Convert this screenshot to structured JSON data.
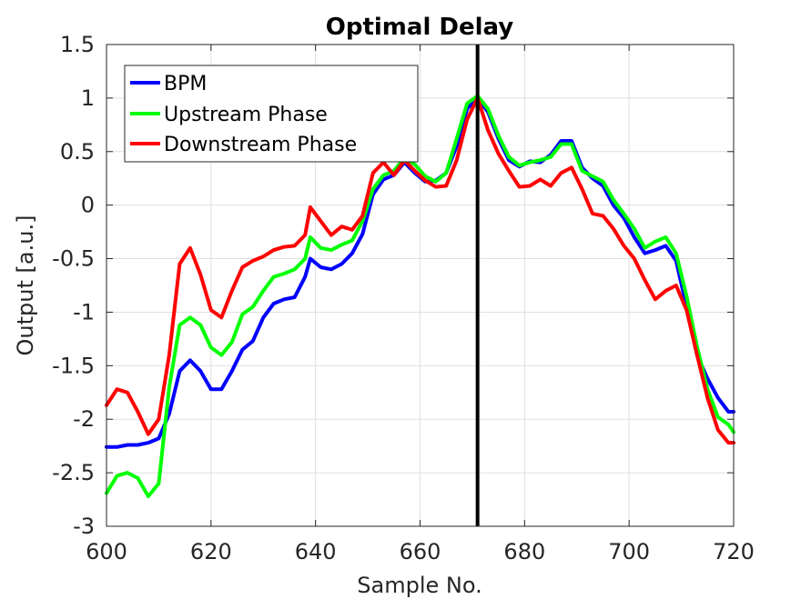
{
  "chart_data": {
    "type": "line",
    "title": "Optimal Delay",
    "xlabel": "Sample No.",
    "ylabel": "Output [a.u.]",
    "xlim": [
      600,
      720
    ],
    "ylim": [
      -3,
      1.5
    ],
    "xticks": [
      600,
      620,
      640,
      660,
      680,
      700,
      720
    ],
    "yticks": [
      -3,
      -2.5,
      -2,
      -1.5,
      -1,
      -0.5,
      0,
      0.5,
      1,
      1.5
    ],
    "xtick_labels": [
      "600",
      "620",
      "640",
      "660",
      "680",
      "700",
      "720"
    ],
    "ytick_labels": [
      "-3",
      "-2.5",
      "-2",
      "-1.5",
      "-1",
      "-0.5",
      "0",
      "0.5",
      "1",
      "1.5"
    ],
    "grid": true,
    "legend_position": "top-left",
    "vline": {
      "x": 671,
      "color": "#000000"
    },
    "series": [
      {
        "name": "BPM",
        "color": "#0000ff",
        "x": [
          600,
          602,
          604,
          606,
          608,
          610,
          612,
          614,
          616,
          618,
          620,
          622,
          624,
          626,
          628,
          630,
          632,
          634,
          636,
          638,
          639,
          641,
          643,
          645,
          647,
          649,
          651,
          653,
          655,
          657,
          659,
          661,
          663,
          665,
          667,
          669,
          671,
          673,
          675,
          677,
          679,
          681,
          683,
          685,
          687,
          689,
          691,
          693,
          695,
          697,
          699,
          701,
          703,
          705,
          707,
          709,
          711,
          713,
          715,
          717,
          719,
          720
        ],
        "y": [
          -2.26,
          -2.26,
          -2.24,
          -2.24,
          -2.22,
          -2.18,
          -1.95,
          -1.55,
          -1.45,
          -1.55,
          -1.72,
          -1.72,
          -1.55,
          -1.35,
          -1.27,
          -1.05,
          -0.92,
          -0.88,
          -0.86,
          -0.67,
          -0.5,
          -0.58,
          -0.6,
          -0.55,
          -0.45,
          -0.27,
          0.1,
          0.24,
          0.28,
          0.4,
          0.3,
          0.22,
          0.23,
          0.3,
          0.55,
          0.9,
          1.0,
          0.87,
          0.62,
          0.42,
          0.36,
          0.41,
          0.4,
          0.47,
          0.6,
          0.6,
          0.35,
          0.25,
          0.18,
          0.0,
          -0.12,
          -0.3,
          -0.45,
          -0.42,
          -0.38,
          -0.52,
          -0.95,
          -1.4,
          -1.62,
          -1.8,
          -1.93,
          -1.93
        ]
      },
      {
        "name": "Upstream Phase",
        "color": "#00ff00",
        "x": [
          600,
          602,
          604,
          606,
          608,
          610,
          612,
          614,
          616,
          618,
          620,
          622,
          624,
          626,
          628,
          630,
          632,
          634,
          636,
          638,
          639,
          641,
          643,
          645,
          647,
          649,
          651,
          653,
          655,
          657,
          659,
          661,
          663,
          665,
          667,
          669,
          671,
          673,
          675,
          677,
          679,
          681,
          683,
          685,
          687,
          689,
          691,
          693,
          695,
          697,
          699,
          701,
          703,
          705,
          707,
          709,
          711,
          713,
          715,
          717,
          719,
          720
        ],
        "y": [
          -2.69,
          -2.53,
          -2.5,
          -2.55,
          -2.72,
          -2.6,
          -1.7,
          -1.12,
          -1.05,
          -1.12,
          -1.33,
          -1.4,
          -1.28,
          -1.02,
          -0.95,
          -0.8,
          -0.67,
          -0.64,
          -0.6,
          -0.5,
          -0.3,
          -0.4,
          -0.42,
          -0.37,
          -0.33,
          -0.15,
          0.15,
          0.28,
          0.32,
          0.44,
          0.38,
          0.27,
          0.22,
          0.3,
          0.62,
          0.95,
          1.02,
          0.9,
          0.65,
          0.45,
          0.37,
          0.4,
          0.42,
          0.45,
          0.57,
          0.57,
          0.32,
          0.27,
          0.22,
          0.05,
          -0.08,
          -0.22,
          -0.4,
          -0.34,
          -0.3,
          -0.45,
          -0.85,
          -1.32,
          -1.72,
          -1.98,
          -2.05,
          -2.12
        ]
      },
      {
        "name": "Downstream Phase",
        "color": "#ff0000",
        "x": [
          600,
          602,
          604,
          606,
          608,
          610,
          612,
          614,
          616,
          618,
          620,
          622,
          624,
          626,
          628,
          630,
          632,
          634,
          636,
          638,
          639,
          641,
          643,
          645,
          647,
          649,
          651,
          653,
          655,
          657,
          659,
          661,
          663,
          665,
          667,
          669,
          671,
          673,
          675,
          677,
          679,
          681,
          683,
          685,
          687,
          689,
          691,
          693,
          695,
          697,
          699,
          701,
          703,
          705,
          707,
          709,
          711,
          713,
          715,
          717,
          719,
          720
        ],
        "y": [
          -1.87,
          -1.72,
          -1.75,
          -1.93,
          -2.14,
          -2.0,
          -1.4,
          -0.55,
          -0.4,
          -0.65,
          -0.98,
          -1.05,
          -0.8,
          -0.58,
          -0.52,
          -0.48,
          -0.42,
          -0.39,
          -0.38,
          -0.28,
          -0.02,
          -0.15,
          -0.28,
          -0.2,
          -0.23,
          -0.1,
          0.3,
          0.4,
          0.28,
          0.42,
          0.32,
          0.23,
          0.17,
          0.18,
          0.42,
          0.8,
          1.0,
          0.7,
          0.48,
          0.32,
          0.17,
          0.18,
          0.24,
          0.18,
          0.3,
          0.35,
          0.15,
          -0.08,
          -0.1,
          -0.22,
          -0.38,
          -0.5,
          -0.7,
          -0.88,
          -0.8,
          -0.75,
          -0.98,
          -1.4,
          -1.8,
          -2.1,
          -2.22,
          -2.22
        ]
      }
    ]
  }
}
